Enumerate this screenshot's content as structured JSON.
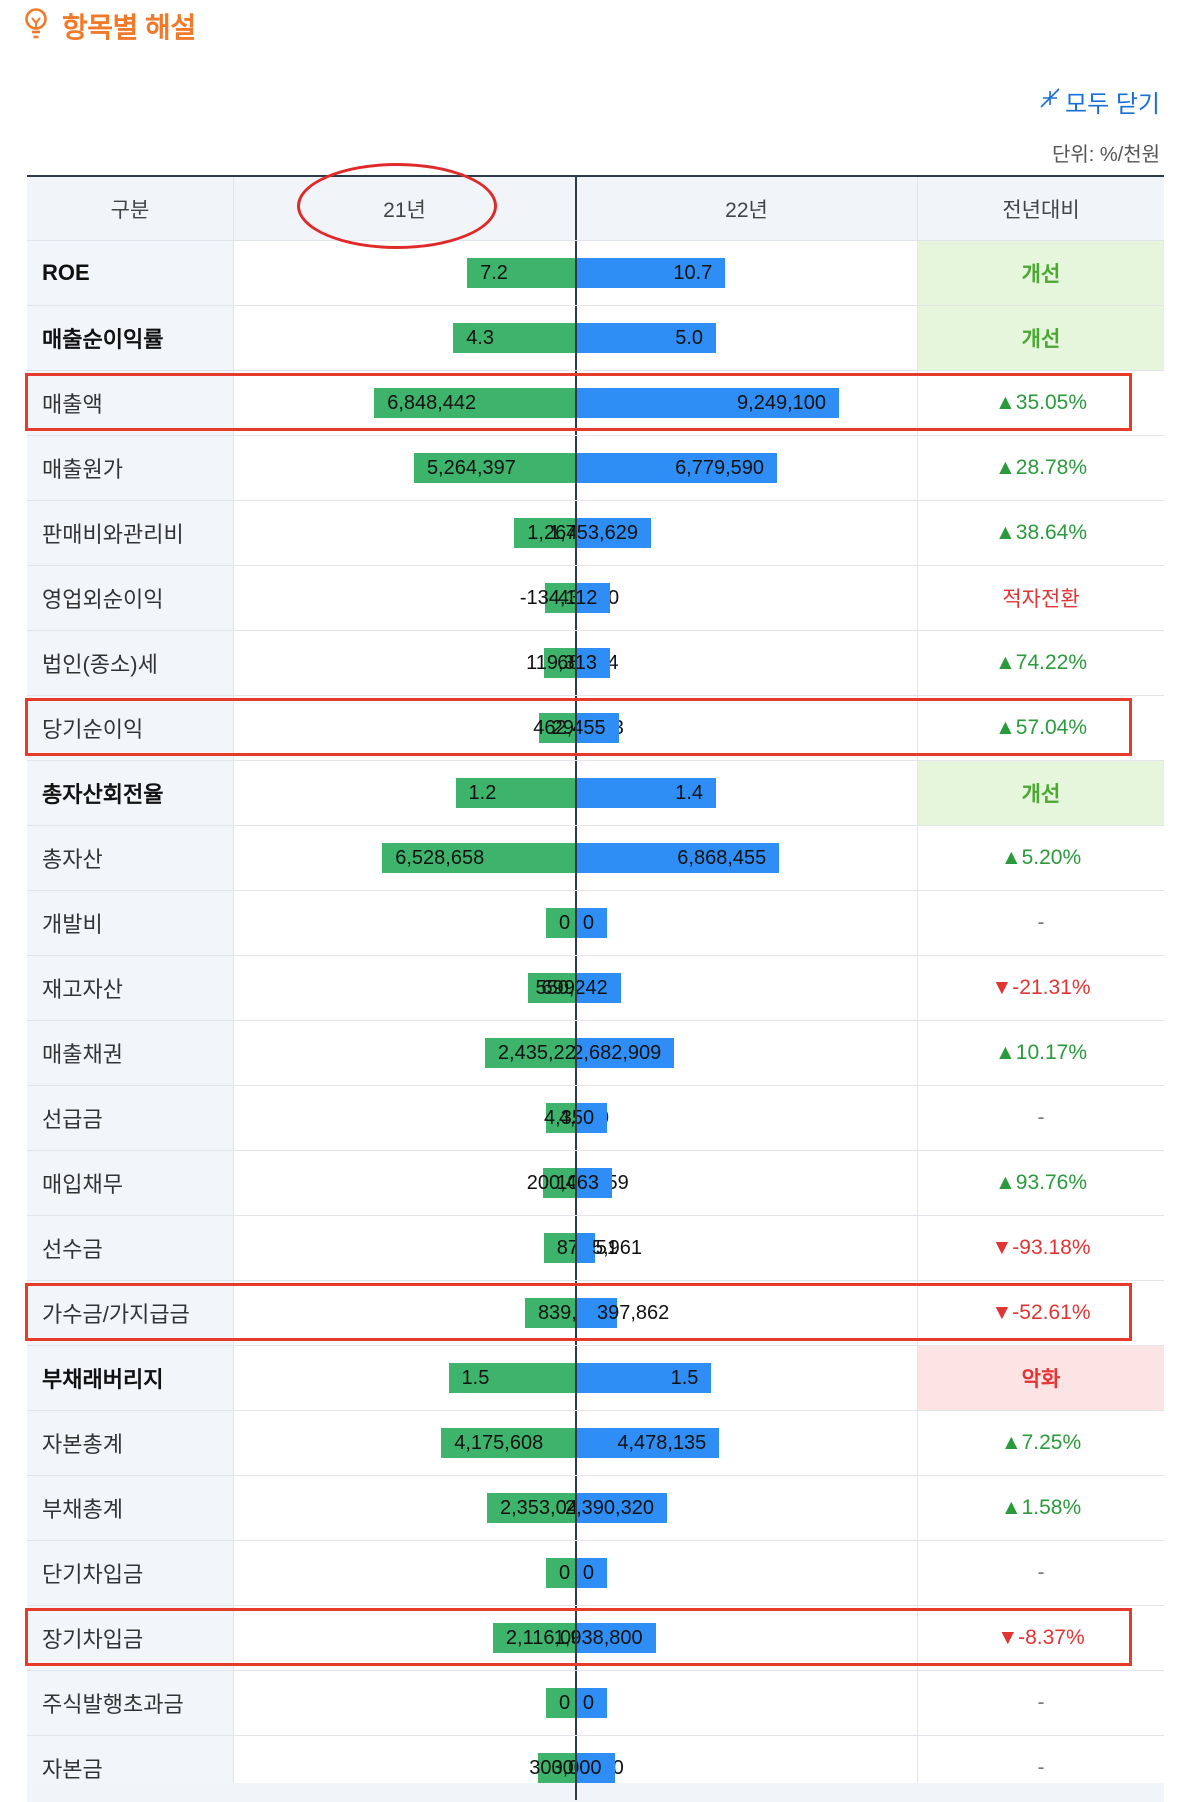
{
  "section": {
    "title": "항목별 해설",
    "collapse_all_label": "모두 닫기",
    "unit_label": "단위: %/천원"
  },
  "table": {
    "headers": [
      "구분",
      "21년",
      "22년",
      "전년대비"
    ],
    "max_value": 9249100,
    "rows": [
      {
        "label": "ROE",
        "bold": true,
        "v21": "7.2",
        "v22": "10.7",
        "w21": 0.34,
        "w22": 0.51,
        "change": "개선",
        "change_type": "good"
      },
      {
        "label": "매출순이익률",
        "bold": true,
        "v21": "4.3",
        "v22": "5.0",
        "w21": 0.4,
        "w22": 0.47,
        "change": "개선",
        "change_type": "good"
      },
      {
        "label": "매출액",
        "bold": false,
        "v21": "6,848,442",
        "v22": "9,249,100",
        "change": "▲35.05%",
        "change_type": "up"
      },
      {
        "label": "매출원가",
        "bold": false,
        "v21": "5,264,397",
        "v22": "6,779,590",
        "change": "▲28.78%",
        "change_type": "up"
      },
      {
        "label": "판매비와관리비",
        "bold": false,
        "v21": "1,264,907",
        "v22": "1,753,629",
        "change": "▲38.64%",
        "change_type": "up"
      },
      {
        "label": "영업외순이익",
        "bold": false,
        "v21": "43,830",
        "v22": "-134,112",
        "change": "적자전환",
        "change_type": "bad-text"
      },
      {
        "label": "법인(종소)세",
        "bold": false,
        "v21": "68,484",
        "v22": "119,313",
        "change": "▲74.22%",
        "change_type": "up"
      },
      {
        "label": "당기순이익",
        "bold": false,
        "v21": "294,483",
        "v22": "462,455",
        "change": "▲57.04%",
        "change_type": "up"
      },
      {
        "label": "총자산회전율",
        "bold": true,
        "v21": "1.2",
        "v22": "1.4",
        "w21": 0.39,
        "w22": 0.47,
        "change": "개선",
        "change_type": "good"
      },
      {
        "label": "총자산",
        "bold": false,
        "v21": "6,528,658",
        "v22": "6,868,455",
        "change": "▲5.20%",
        "change_type": "up"
      },
      {
        "label": "개발비",
        "bold": false,
        "v21": "0",
        "v22": "0",
        "change": "-",
        "change_type": "none"
      },
      {
        "label": "재고자산",
        "bold": false,
        "v21": "699,221",
        "v22": "550,242",
        "change": "▼-21.31%",
        "change_type": "down"
      },
      {
        "label": "매출채권",
        "bold": false,
        "v21": "2,435,228",
        "v22": "2,682,909",
        "change": "▲10.17%",
        "change_type": "up"
      },
      {
        "label": "선급금",
        "bold": false,
        "v21": "4,350",
        "v22": "4,350",
        "change": "-",
        "change_type": "none"
      },
      {
        "label": "매입채무",
        "bold": false,
        "v21": "103,459",
        "v22": "200,463",
        "change": "▲93.76%",
        "change_type": "up"
      },
      {
        "label": "선수금",
        "bold": false,
        "v21": "87,451",
        "v22": "5,961",
        "change": "▼-93.18%",
        "change_type": "down"
      },
      {
        "label": "가수금/가지급금",
        "bold": false,
        "v21": "839,558",
        "v22": "397,862",
        "change": "▼-52.61%",
        "change_type": "down"
      },
      {
        "label": "부채래버리지",
        "bold": true,
        "v21": "1.5",
        "v22": "1.5",
        "w21": 0.42,
        "w22": 0.45,
        "change": "악화",
        "change_type": "bad"
      },
      {
        "label": "자본총계",
        "bold": false,
        "v21": "4,175,608",
        "v22": "4,478,135",
        "change": "▲7.25%",
        "change_type": "up"
      },
      {
        "label": "부채총계",
        "bold": false,
        "v21": "2,353,049",
        "v22": "2,390,320",
        "change": "▲1.58%",
        "change_type": "up"
      },
      {
        "label": "단기차입금",
        "bold": false,
        "v21": "0",
        "v22": "0",
        "change": "-",
        "change_type": "none"
      },
      {
        "label": "장기차입금",
        "bold": false,
        "v21": "2,116,000",
        "v22": "1,938,800",
        "change": "▼-8.37%",
        "change_type": "down"
      },
      {
        "label": "주식발행초과금",
        "bold": false,
        "v21": "0",
        "v22": "0",
        "change": "-",
        "change_type": "none"
      },
      {
        "label": "자본금",
        "bold": false,
        "v21": "300,000",
        "v22": "300,000",
        "change": "-",
        "change_type": "none"
      }
    ]
  },
  "annotations": {
    "highlighted_rows": [
      2,
      7,
      16,
      21
    ],
    "circled_header": 1
  },
  "colors": {
    "bar_2021": "#3db36b",
    "bar_2022": "#2f8ef5",
    "accent": "#f07a2a",
    "annotation_red": "#e63a2a"
  }
}
